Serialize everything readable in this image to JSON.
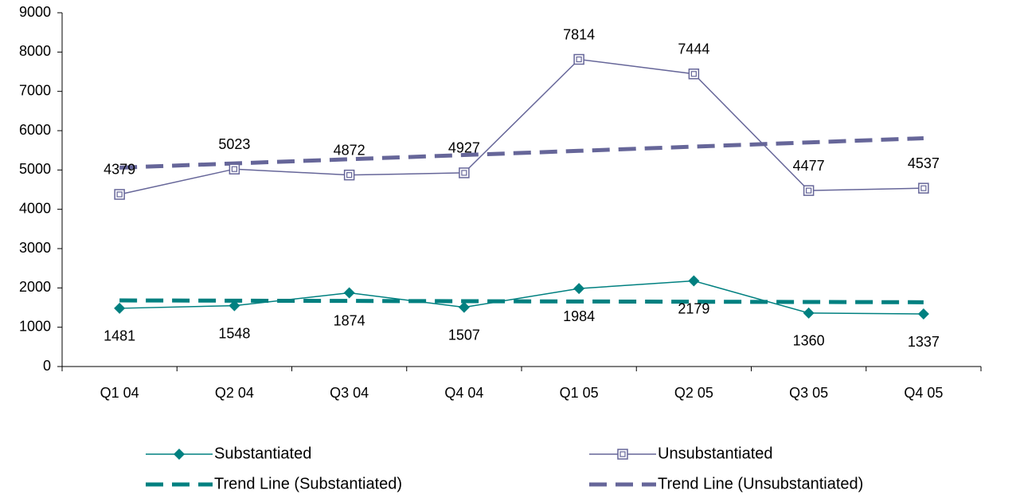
{
  "chart_data": {
    "type": "line",
    "categories": [
      "Q1 04",
      "Q2 04",
      "Q3 04",
      "Q4 04",
      "Q1 05",
      "Q2 05",
      "Q3 05",
      "Q4 05"
    ],
    "series": [
      {
        "name": "Substantiated",
        "color": "#008080",
        "marker": "diamond",
        "labels": "below",
        "values": [
          1481,
          1548,
          1874,
          1507,
          1984,
          2179,
          1360,
          1337
        ]
      },
      {
        "name": "Unsubstantiated",
        "color": "#666699",
        "marker": "square",
        "labels": "above",
        "values": [
          4379,
          5023,
          4872,
          4927,
          7814,
          7444,
          4477,
          4537
        ]
      },
      {
        "name": "Trend Line (Substantiated)",
        "color": "#008080",
        "dashed": true,
        "values": [
          1682,
          1675,
          1669,
          1662,
          1655,
          1649,
          1642,
          1635
        ]
      },
      {
        "name": "Trend Line (Unsubstantiated)",
        "color": "#666699",
        "dashed": true,
        "values": [
          5060,
          5167,
          5274,
          5381,
          5487,
          5594,
          5701,
          5808
        ]
      }
    ],
    "ylim": [
      0,
      9000
    ],
    "yticks": [
      0,
      1000,
      2000,
      3000,
      4000,
      5000,
      6000,
      7000,
      8000,
      9000
    ],
    "legend": "bottom"
  }
}
